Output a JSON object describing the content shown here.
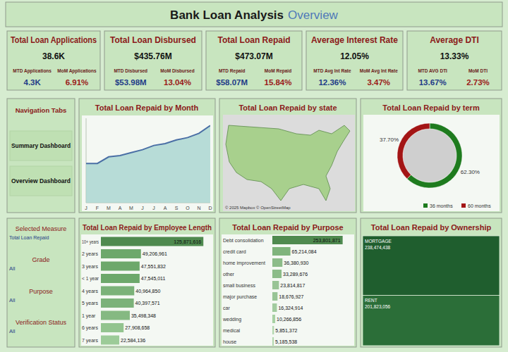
{
  "header": {
    "title": "Bank Loan Analysis",
    "subtitle": "Overview"
  },
  "kpis": [
    {
      "title": "Total Loan Applications",
      "value": "38.6K",
      "mtd_label": "MTD Applications",
      "mtd_value": "4.3K",
      "mom_label": "MoM Applications",
      "mom_value": "6.91%"
    },
    {
      "title": "Total Loan Disbursed",
      "value": "$435.76M",
      "mtd_label": "MTD Disbursed",
      "mtd_value": "$53.98M",
      "mom_label": "MoM Disbursed",
      "mom_value": "13.04%"
    },
    {
      "title": "Total Loan Repaid",
      "value": "$473.07M",
      "mtd_label": "MTD Repaid",
      "mtd_value": "$58.07M",
      "mom_label": "MoM Repaid",
      "mom_value": "15.84%"
    },
    {
      "title": "Average Interest Rate",
      "value": "12.05%",
      "mtd_label": "MTD Avg Int Rate",
      "mtd_value": "12.36%",
      "mom_label": "MoM Avg Int Rate",
      "mom_value": "3.47%"
    },
    {
      "title": "Average DTI",
      "value": "13.33%",
      "mtd_label": "MTD AVG DTI",
      "mtd_value": "13.67%",
      "mom_label": "MoM DTI",
      "mom_value": "2.73%"
    }
  ],
  "navigation": {
    "title": "Navigation Tabs",
    "tabs": [
      "Summary Dashboard",
      "Overview Dashboard"
    ]
  },
  "filters": {
    "title": "Selected Measure",
    "measure": "Total Loan Repaid",
    "items": [
      {
        "label": "Grade",
        "value": "All"
      },
      {
        "label": "Purpose",
        "value": "All"
      },
      {
        "label": "Verification Status",
        "value": "All"
      }
    ]
  },
  "chart_data": [
    {
      "type": "area",
      "title": "Total Loan Repaid by Month",
      "categories": [
        "J",
        "F",
        "M",
        "A",
        "M",
        "J",
        "J",
        "A",
        "S",
        "O",
        "N",
        "D"
      ],
      "values": [
        27900000,
        27900000,
        32600000,
        33500000,
        35600000,
        37700000,
        40700000,
        42000000,
        44600000,
        46300000,
        49300000,
        54900000
      ],
      "color": "#4a6fa5",
      "ylim": [
        0,
        60000000
      ],
      "tick_labels": "x",
      "grid": false
    },
    {
      "type": "map",
      "title": "Total Loan Repaid by state",
      "attribution": "© 2025 Mapbox © OpenStreetMap"
    },
    {
      "type": "pie",
      "title": "Total Loan Repaid by term",
      "categories": [
        "36 months",
        "60 months"
      ],
      "values": [
        62.3,
        37.7
      ],
      "value_labels": [
        "62.30%",
        "37.70%"
      ],
      "colors": [
        "#1e7b1e",
        "#a31515"
      ],
      "data_labels": true,
      "legend": "bottom"
    },
    {
      "type": "bar",
      "orientation": "horizontal",
      "title": "Total Loan Repaid by Employee Length",
      "categories": [
        "10+ years",
        "2 years",
        "3 years",
        "< 1 year",
        "4 years",
        "5 years",
        "1 year",
        "6 years",
        "7 years"
      ],
      "values": [
        125871616,
        49206961,
        47551832,
        47545011,
        40964850,
        40397571,
        35498348,
        27908658,
        22584136
      ],
      "value_labels": [
        "125,871,616",
        "49,206,961",
        "47,551,832",
        "47,545,011",
        "40,964,850",
        "40,397,571",
        "35,498,348",
        "27,908,658",
        "22,584,136"
      ],
      "colors": [
        "#4f8a4f",
        "#6da86b",
        "#6da86b",
        "#6da86b",
        "#7bb279",
        "#7bb279",
        "#85b982",
        "#93c48f",
        "#9ccb98"
      ],
      "xlim": [
        0,
        130000000
      ],
      "data_labels": true,
      "tick_labels": false
    },
    {
      "type": "bar",
      "orientation": "horizontal",
      "title": "Total Loan Repaid by Purpose",
      "categories": [
        "Debt consolidation",
        "credit card",
        "home improvement",
        "other",
        "small business",
        "major purchase",
        "car",
        "wedding",
        "medical",
        "house"
      ],
      "values": [
        253801871,
        65214084,
        36380930,
        33289676,
        23814817,
        18676927,
        16324914,
        10266856,
        5851372,
        5185538
      ],
      "value_labels": [
        "253,801,871",
        "65,214,084",
        "36,380,930",
        "33,289,676",
        "23,814,817",
        "18,676,927",
        "16,324,914",
        "10,266,856",
        "5,851,372",
        "5,185,538"
      ],
      "colors": [
        "#4f8a4f",
        "#7fb47c",
        "#8cbc89",
        "#8cbc89",
        "#98c495",
        "#98c495",
        "#a2cb9f",
        "#a7d1a3",
        "#b3d8af",
        "#b3d8af"
      ],
      "xlim": [
        0,
        270000000
      ],
      "data_labels": true,
      "tick_labels": false
    },
    {
      "type": "treemap",
      "title": "Total Loan Repaid by Ownership",
      "categories": [
        "MORTGAGE",
        "RENT"
      ],
      "values": [
        238474438,
        201823056
      ],
      "value_labels": [
        "238,474,438",
        "201,823,056"
      ],
      "colors": [
        "#1f5e2e",
        "#2b6e38"
      ],
      "data_labels": true
    }
  ]
}
